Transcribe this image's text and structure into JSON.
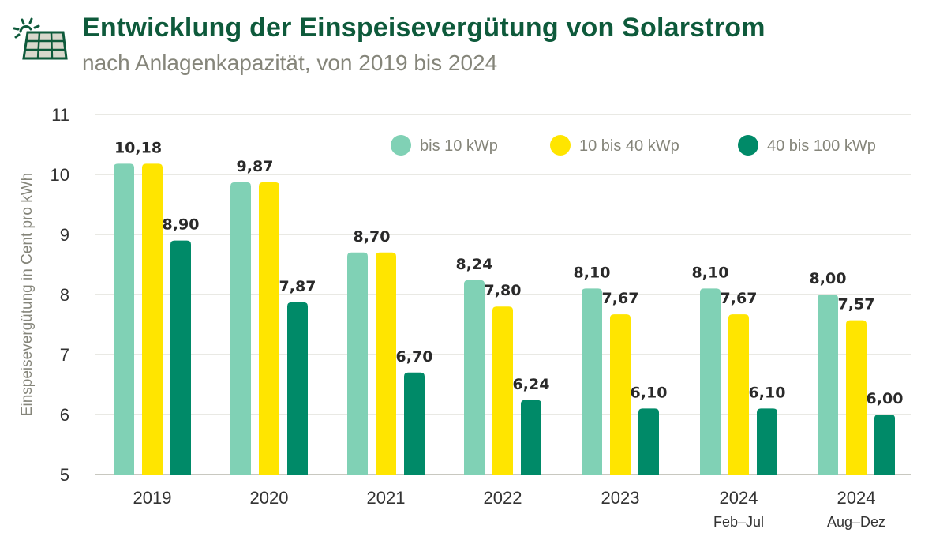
{
  "header": {
    "title": "Entwicklung der Einspeisevergütung von Solarstrom",
    "subtitle": "nach Anlagenkapazität, von 2019 bis 2024",
    "icon": "solar-panel-icon"
  },
  "chart_data": {
    "type": "bar",
    "title": "Entwicklung der Einspeisevergütung von Solarstrom",
    "subtitle": "nach Anlagenkapazität, von 2019 bis 2024",
    "ylabel": "Einspeisevergütung in Cent pro kWh",
    "xlabel": "",
    "ylim": [
      5,
      11
    ],
    "yticks": [
      "5",
      "6",
      "7",
      "8",
      "9",
      "10",
      "11"
    ],
    "grid": true,
    "legend_position": "top-right",
    "categories": [
      {
        "label": "2019",
        "sub": ""
      },
      {
        "label": "2020",
        "sub": ""
      },
      {
        "label": "2021",
        "sub": ""
      },
      {
        "label": "2022",
        "sub": ""
      },
      {
        "label": "2023",
        "sub": ""
      },
      {
        "label": "2024",
        "sub": "Feb–Jul"
      },
      {
        "label": "2024",
        "sub": "Aug–Dez"
      }
    ],
    "series": [
      {
        "name": "bis 10 kWp",
        "color": "#80d1b5",
        "values": [
          10.18,
          9.87,
          8.7,
          8.24,
          8.1,
          8.1,
          8.0
        ]
      },
      {
        "name": "10 bis 40 kWp",
        "color": "#ffe500",
        "values": [
          10.18,
          9.87,
          8.7,
          7.8,
          7.67,
          7.67,
          7.57
        ]
      },
      {
        "name": "40 bis 100 kWp",
        "color": "#008a68",
        "values": [
          8.9,
          7.87,
          6.7,
          6.24,
          6.1,
          6.1,
          6.0
        ]
      }
    ]
  }
}
